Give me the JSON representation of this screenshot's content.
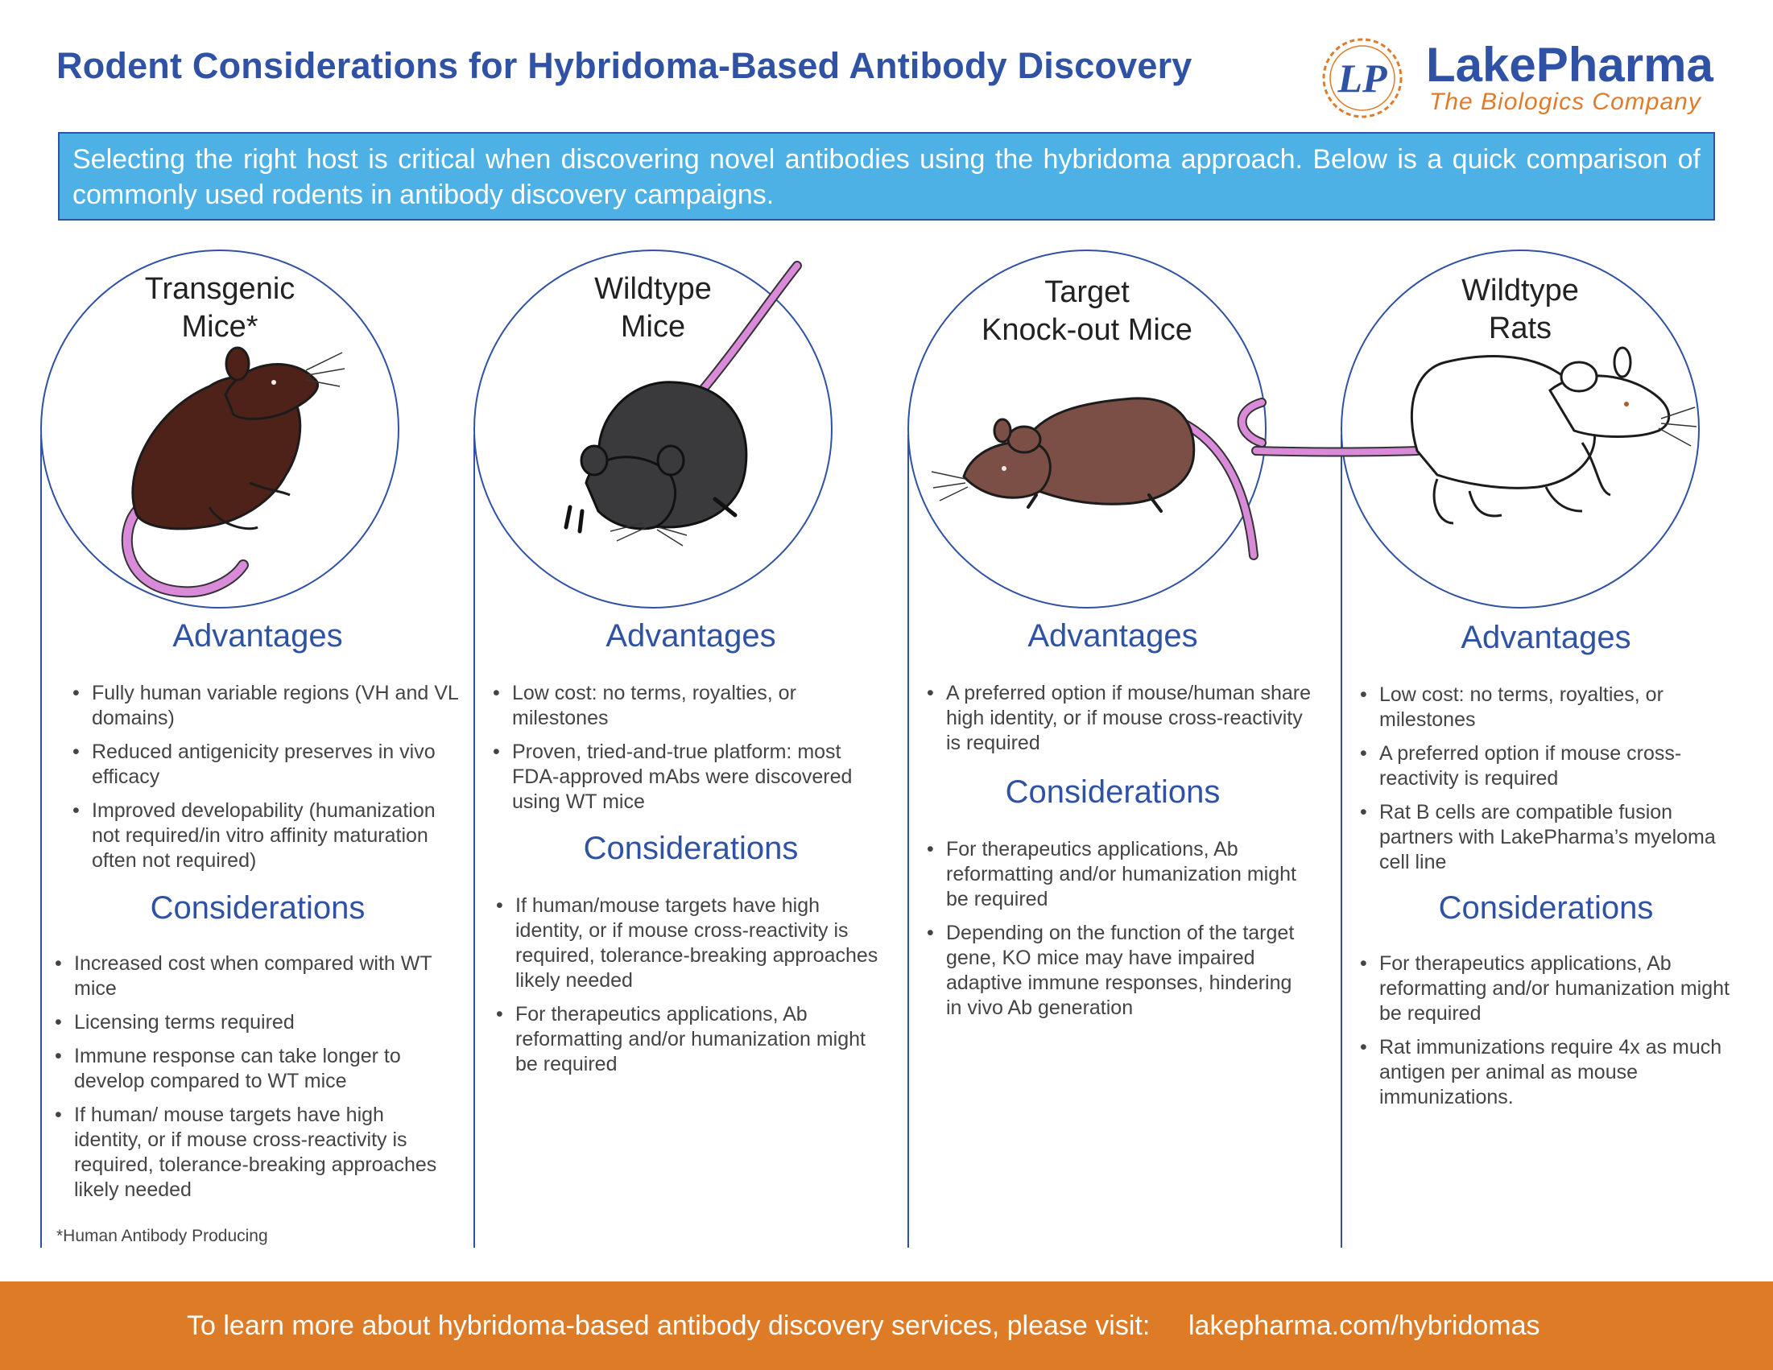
{
  "page": {
    "title": "Rodent Considerations for Hybridoma-Based Antibody Discovery",
    "intro": "Selecting the right host is critical when discovering novel antibodies using the hybridoma approach. Below is a quick comparison of commonly used rodents in antibody discovery campaigns."
  },
  "logo": {
    "mark": "LP",
    "name": "LakePharma",
    "tagline": "The Biologics Company"
  },
  "columns": [
    {
      "name_lines": [
        "Transgenic",
        "Mice*"
      ],
      "advantages_heading": "Advantages",
      "advantages": [
        "Fully human variable regions (VH and VL domains)",
        "Reduced antigenicity preserves in vivo efficacy",
        "Improved developability (humanization not required/in vitro affinity maturation often not required)"
      ],
      "considerations_heading": "Considerations",
      "considerations": [
        "Increased cost when compared with WT mice",
        "Licensing terms required",
        "Immune response can take longer to develop compared to WT mice",
        "If human/ mouse targets have high identity, or if mouse cross-reactivity is required, tolerance-breaking approaches likely needed"
      ]
    },
    {
      "name_lines": [
        "Wildtype",
        "Mice"
      ],
      "advantages_heading": "Advantages",
      "advantages": [
        "Low cost: no terms, royalties, or milestones",
        "Proven, tried-and-true platform: most FDA-approved mAbs were discovered using WT mice"
      ],
      "considerations_heading": "Considerations",
      "considerations": [
        "If human/mouse targets have high identity, or if mouse cross-reactivity is required, tolerance-breaking approaches likely needed",
        "For therapeutics applications, Ab reformatting and/or humanization might be required"
      ]
    },
    {
      "name_lines": [
        "Target",
        "Knock-out Mice"
      ],
      "advantages_heading": "Advantages",
      "advantages": [
        "A preferred option if mouse/human share high identity, or if mouse cross-reactivity is required"
      ],
      "considerations_heading": "Considerations",
      "considerations": [
        "For therapeutics applications, Ab reformatting and/or humanization might be required",
        "Depending on the function of the target gene, KO mice may have impaired adaptive immune responses, hindering in vivo Ab generation"
      ]
    },
    {
      "name_lines": [
        "Wildtype",
        "Rats"
      ],
      "advantages_heading": "Advantages",
      "advantages": [
        "Low cost: no terms, royalties, or milestones",
        "A preferred option if mouse cross-reactivity is required",
        "Rat B cells are compatible fusion partners with LakePharma’s myeloma cell line"
      ],
      "considerations_heading": "Considerations",
      "considerations": [
        "For therapeutics applications, Ab reformatting and/or humanization might be required",
        "Rat immunizations require 4x as much antigen per animal as mouse immunizations."
      ]
    }
  ],
  "footnote": "*Human Antibody Producing",
  "footer": {
    "text": "To learn more about hybridoma-based antibody discovery services, please visit:",
    "link": "lakepharma.com/hybridomas"
  },
  "icons": [
    "lakepharma-logo-icon",
    "brown-mouse-icon",
    "black-mouse-icon",
    "knockout-mouse-icon",
    "white-rat-icon"
  ],
  "colors": {
    "brand_blue": "#2f52a4",
    "intro_blue": "#4eb1e6",
    "footer_orange": "#de7b27",
    "tail_pink": "#d98ad8"
  }
}
